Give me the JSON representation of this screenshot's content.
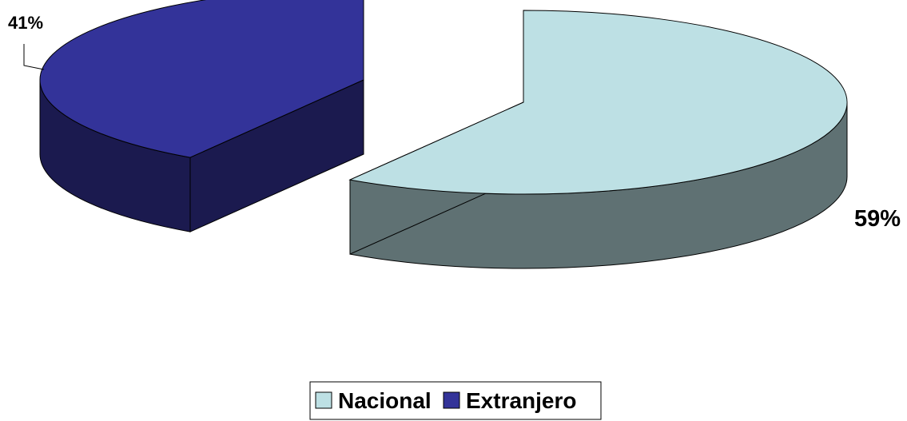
{
  "chart_data": {
    "type": "pie",
    "style": "3d-exploded",
    "categories": [
      "Nacional",
      "Extranjero"
    ],
    "values": [
      59,
      41
    ],
    "labels": [
      "59%",
      "41%"
    ],
    "colors": {
      "Nacional": {
        "top": "#BDE0E4",
        "side": "#5F7173"
      },
      "Extranjero": {
        "top": "#333399",
        "side": "#1B1A4F"
      }
    },
    "legend": {
      "position": "bottom",
      "entries": [
        "Nacional",
        "Extranjero"
      ]
    }
  }
}
